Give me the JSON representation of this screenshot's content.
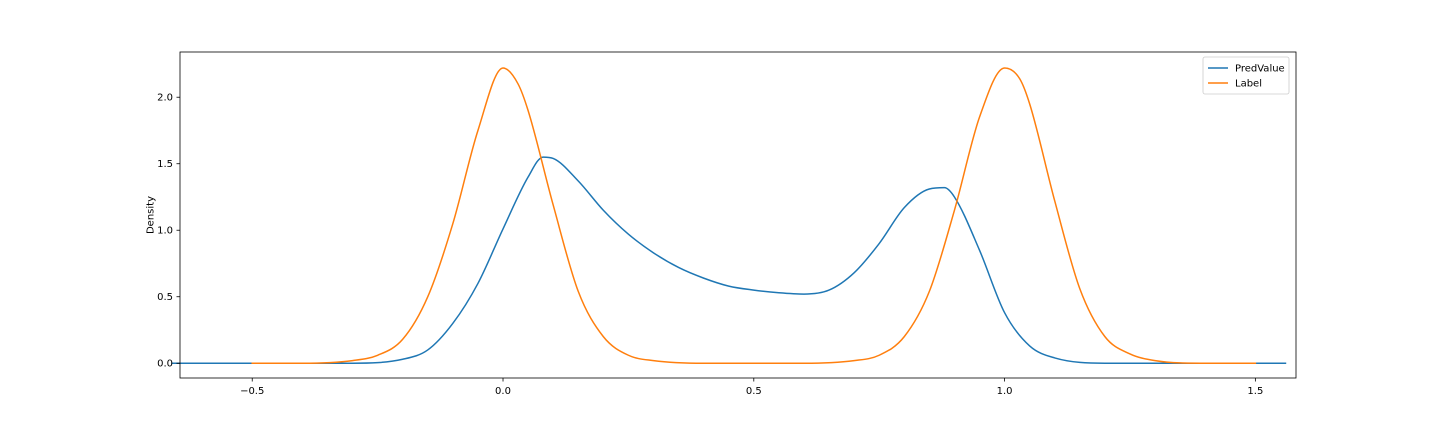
{
  "chart_data": {
    "type": "line",
    "title": "",
    "xlabel": "",
    "ylabel": "Density",
    "xlim": [
      -0.644,
      1.581
    ],
    "ylim": [
      -0.111,
      2.34
    ],
    "xticks": [
      -0.5,
      0.0,
      0.5,
      1.0,
      1.5
    ],
    "xtick_labels": [
      "−0.5",
      "0.0",
      "0.5",
      "1.0",
      "1.5"
    ],
    "yticks": [
      0.0,
      0.5,
      1.0,
      1.5,
      2.0
    ],
    "ytick_labels": [
      "0.0",
      "0.5",
      "1.0",
      "1.5",
      "2.0"
    ],
    "grid": false,
    "legend": "top-right",
    "series": [
      {
        "name": "PredValue",
        "color": "#1f77b4",
        "x": [
          -0.66,
          -0.5,
          -0.4,
          -0.3,
          -0.2,
          -0.15,
          -0.1,
          -0.05,
          0.0,
          0.05,
          0.08,
          0.1,
          0.15,
          0.2,
          0.25,
          0.3,
          0.35,
          0.4,
          0.45,
          0.5,
          0.55,
          0.6,
          0.65,
          0.7,
          0.75,
          0.8,
          0.85,
          0.88,
          0.9,
          0.95,
          1.0,
          1.05,
          1.1,
          1.2,
          1.3,
          1.5,
          1.56
        ],
        "values": [
          0.0,
          0.0,
          0.0,
          0.0,
          0.03,
          0.1,
          0.3,
          0.6,
          1.01,
          1.4,
          1.55,
          1.54,
          1.37,
          1.15,
          0.97,
          0.83,
          0.72,
          0.64,
          0.58,
          0.55,
          0.53,
          0.52,
          0.55,
          0.68,
          0.9,
          1.17,
          1.31,
          1.32,
          1.25,
          0.85,
          0.38,
          0.13,
          0.04,
          0.0,
          0.0,
          0.0,
          0.0
        ]
      },
      {
        "name": "Label",
        "color": "#ff7f0e",
        "x": [
          -0.5,
          -0.4,
          -0.3,
          -0.25,
          -0.2,
          -0.15,
          -0.1,
          -0.05,
          0.0,
          0.03,
          0.05,
          0.1,
          0.15,
          0.2,
          0.25,
          0.3,
          0.4,
          0.5,
          0.6,
          0.7,
          0.75,
          0.8,
          0.85,
          0.9,
          0.95,
          1.0,
          1.03,
          1.05,
          1.1,
          1.15,
          1.2,
          1.25,
          1.3,
          1.4,
          1.5
        ],
        "values": [
          0.0,
          0.0,
          0.02,
          0.06,
          0.18,
          0.5,
          1.05,
          1.75,
          2.22,
          2.1,
          1.9,
          1.19,
          0.54,
          0.2,
          0.06,
          0.02,
          0.0,
          0.0,
          0.0,
          0.02,
          0.06,
          0.2,
          0.54,
          1.15,
          1.85,
          2.22,
          2.14,
          1.95,
          1.22,
          0.56,
          0.2,
          0.07,
          0.02,
          0.0,
          0.0
        ]
      }
    ]
  }
}
